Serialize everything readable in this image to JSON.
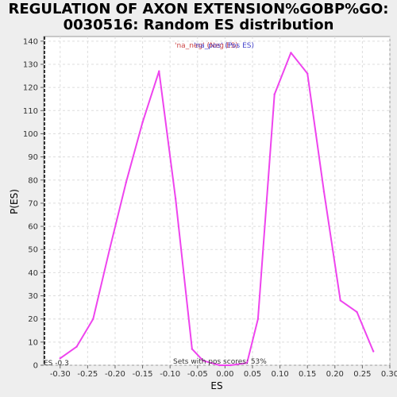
{
  "chart_data": {
    "type": "line",
    "title_line1": "REGULATION OF AXON EXTENSION%GOBP%GO:",
    "title_line2": "0030516: Random ES distribution",
    "xlabel": "ES",
    "ylabel": "P(ES)",
    "xlim": [
      -0.33,
      0.3
    ],
    "ylim": [
      0,
      142
    ],
    "x_ticks": [
      -0.3,
      -0.25,
      -0.2,
      -0.15,
      -0.1,
      -0.05,
      0.0,
      0.05,
      0.1,
      0.15,
      0.2,
      0.25,
      0.3
    ],
    "x_tick_labels": [
      "-0.30",
      "-0.25",
      "-0.20",
      "-0.15",
      "-0.10",
      "-0.05",
      "0.00",
      "0.05",
      "0.10",
      "0.15",
      "0.20",
      "0.25",
      "0.30"
    ],
    "y_ticks": [
      0,
      10,
      20,
      30,
      40,
      50,
      60,
      70,
      80,
      90,
      100,
      110,
      120,
      130,
      140
    ],
    "grid": true,
    "legend": {
      "placement": "top-center",
      "text_neg": "'na_neg' (Neg ES)",
      "text_pos": "'na_pos' (Pos ES)",
      "color_neg": "#cc4444",
      "color_pos": "#4444cc"
    },
    "series": [
      {
        "name": "Random ES distribution",
        "color": "#ee44ee",
        "x": [
          -0.3,
          -0.27,
          -0.24,
          -0.21,
          -0.18,
          -0.15,
          -0.12,
          -0.09,
          -0.06,
          -0.04,
          -0.01,
          0.01,
          0.04,
          0.06,
          0.09,
          0.12,
          0.15,
          0.18,
          0.21,
          0.24,
          0.27
        ],
        "y": [
          3,
          8,
          20,
          50,
          79,
          105,
          127,
          72,
          7,
          2,
          0,
          0,
          1,
          20,
          117,
          135,
          126,
          75,
          28,
          23,
          6
        ]
      }
    ],
    "observed_es": {
      "value": -0.33,
      "label": "ES -0.3",
      "line_color": "#333333"
    },
    "annotation": "Sets with pos scores: 53%"
  }
}
